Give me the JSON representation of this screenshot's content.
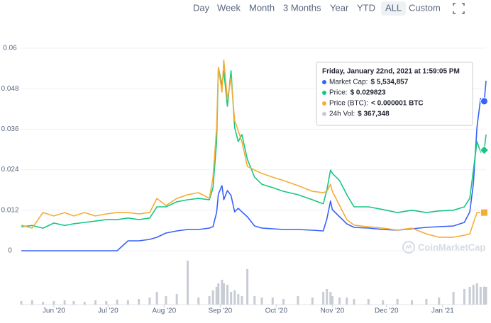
{
  "toolbar": {
    "buttons": [
      "Day",
      "Week",
      "Month",
      "3 Months",
      "Year",
      "YTD",
      "ALL",
      "Custom"
    ],
    "selected": "ALL"
  },
  "chart_data": {
    "type": "line",
    "x": [
      0,
      6,
      12,
      18,
      24,
      29,
      35,
      41,
      47,
      53,
      59,
      65,
      71,
      75,
      80,
      86,
      92,
      98,
      104,
      106,
      108,
      109,
      111,
      112,
      114,
      116,
      118,
      120,
      122,
      125,
      129,
      133,
      139,
      145,
      153,
      161,
      167,
      169,
      171,
      172,
      176,
      180,
      184,
      192,
      200,
      208,
      216,
      224,
      231,
      239,
      245,
      248,
      250,
      252,
      254,
      256,
      257
    ],
    "xlim": [
      0,
      257
    ],
    "xticks": [
      {
        "value": 18,
        "label": "Jun '20"
      },
      {
        "value": 48,
        "label": "Jul '20"
      },
      {
        "value": 79,
        "label": "Aug '20"
      },
      {
        "value": 110,
        "label": "Sep '20"
      },
      {
        "value": 141,
        "label": "Oct '20"
      },
      {
        "value": 172,
        "label": "Nov '20"
      },
      {
        "value": 202,
        "label": "Dec '20"
      },
      {
        "value": 233,
        "label": "Jan '21"
      }
    ],
    "ylim": [
      0,
      0.06
    ],
    "yticks": [
      0,
      0.012,
      0.024,
      0.036,
      0.048,
      0.06
    ],
    "y2lim": [
      0,
      7500000
    ],
    "y3lim": [
      0,
      1100000
    ],
    "grid": true,
    "series": [
      {
        "type": "bar",
        "axis": "y3",
        "color": "#c8ccd4",
        "values": [
          72500,
          87000,
          58000,
          72500,
          87000,
          72500,
          58000,
          87000,
          72500,
          101500,
          87000,
          116000,
          145000,
          261000,
          174000,
          217500,
          899000,
          145000,
          174000,
          290000,
          362500,
          435000,
          507500,
          435000,
          406000,
          261000,
          290000,
          217500,
          174000,
          725000,
          174000,
          145000,
          145000,
          116000,
          174000,
          145000,
          261000,
          319000,
          261000,
          174000,
          145000,
          145000,
          116000,
          116000,
          87000,
          116000,
          87000,
          116000,
          145000,
          261000,
          319000,
          362500,
          406000,
          435000,
          362500,
          367348,
          362500
        ]
      },
      {
        "axis": "y2",
        "color": "#3861fb",
        "values": [
          0,
          0,
          0,
          0,
          0,
          0,
          0,
          0,
          0,
          0,
          367000,
          367000,
          420000,
          498000,
          656000,
          734000,
          787000,
          787000,
          839000,
          892000,
          1420000,
          2100000,
          2410000,
          1890000,
          2230000,
          2050000,
          1440000,
          1570000,
          1440000,
          1260000,
          918000,
          839000,
          813000,
          787000,
          787000,
          760000,
          734000,
          1180000,
          1840000,
          1520000,
          1260000,
          997000,
          865000,
          839000,
          787000,
          760000,
          813000,
          865000,
          892000,
          918000,
          1050000,
          1440000,
          2490000,
          4590000,
          5640000,
          5534857,
          6290000
        ]
      },
      {
        "color": "#16c784",
        "values": [
          0.0071,
          0.0075,
          0.0067,
          0.0082,
          0.0075,
          0.008,
          0.0084,
          0.0088,
          0.0092,
          0.0092,
          0.0097,
          0.0092,
          0.0097,
          0.013,
          0.013,
          0.0145,
          0.0151,
          0.0155,
          0.0151,
          0.0187,
          0.0323,
          0.0543,
          0.0491,
          0.0533,
          0.0428,
          0.0533,
          0.0365,
          0.0323,
          0.0344,
          0.0271,
          0.0218,
          0.0197,
          0.0187,
          0.0176,
          0.0166,
          0.0151,
          0.0139,
          0.018,
          0.0239,
          0.0229,
          0.0208,
          0.0166,
          0.013,
          0.013,
          0.0122,
          0.0113,
          0.012,
          0.0113,
          0.0118,
          0.012,
          0.013,
          0.0155,
          0.0239,
          0.0323,
          0.0292,
          0.0298,
          0.0344
        ]
      },
      {
        "color": "#f5ac37",
        "values": [
          0.0076,
          0.0067,
          0.0113,
          0.0103,
          0.0113,
          0.0103,
          0.0113,
          0.0103,
          0.0109,
          0.0113,
          0.0113,
          0.0109,
          0.0113,
          0.0155,
          0.0134,
          0.0155,
          0.0166,
          0.0172,
          0.0155,
          0.0218,
          0.0365,
          0.0543,
          0.047,
          0.0565,
          0.0449,
          0.0512,
          0.0386,
          0.0355,
          0.0323,
          0.025,
          0.0239,
          0.0229,
          0.0218,
          0.0208,
          0.0193,
          0.0176,
          0.0172,
          0.0176,
          0.0197,
          0.0176,
          0.0134,
          0.0092,
          0.0076,
          0.0071,
          0.0067,
          0.0061,
          0.0067,
          0.005,
          0.004,
          0.004,
          0.0046,
          0.005,
          0.0082,
          0.0113,
          0.0113,
          0.0113,
          0.0113
        ]
      }
    ],
    "tooltip": {
      "title": "Friday, January 22nd, 2021 at 1:59:05 PM",
      "rows": [
        {
          "label": "Market Cap:",
          "value": "$ 5,534,857"
        },
        {
          "label": "Price:",
          "value": "$ 0.029823"
        },
        {
          "label": "Price (BTC):",
          "value": "< 0.000001 BTC"
        },
        {
          "label": "24h Vol:",
          "value": "$ 367,348"
        }
      ]
    },
    "watermark": "CoinMarketCap"
  }
}
